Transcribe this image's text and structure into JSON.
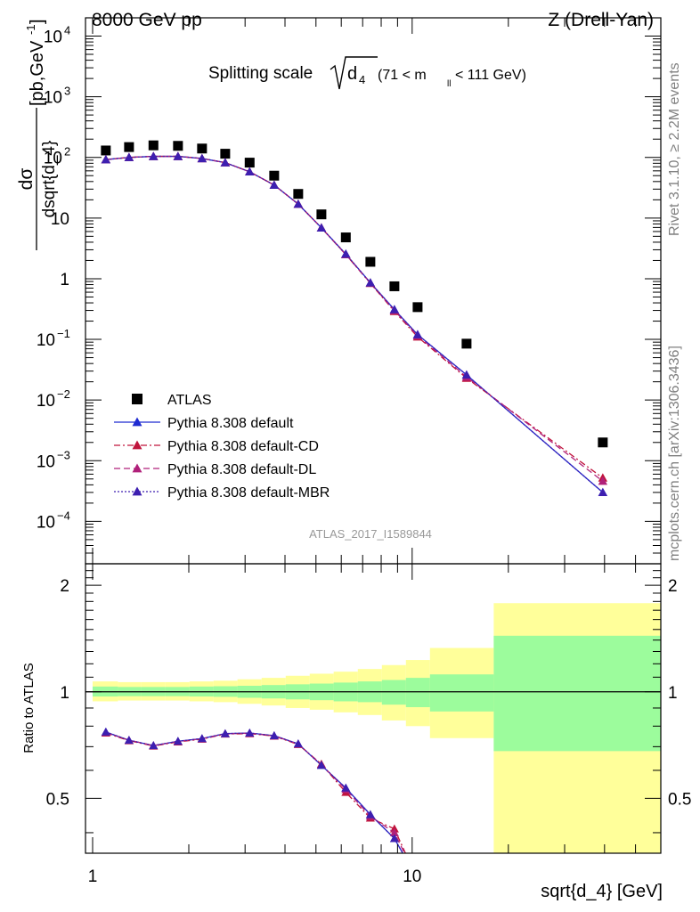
{
  "header": {
    "left": "8000 GeV pp",
    "right": "Z (Drell-Yan)"
  },
  "side": {
    "rivet": "Rivet 3.1.10, ≥ 2.2M events",
    "mcplots": "mcplots.cern.ch [arXiv:1306.3436]"
  },
  "chart_data": [
    {
      "type": "scatter",
      "panel": "main",
      "title": "Splitting scale √d₄ (71 < mₗₗ < 111 GeV)",
      "title_parts": {
        "main": "Splitting scale",
        "sym": "d",
        "sub": "4",
        "cut": "(71 < m",
        "cut_sub": "ll",
        "cut_end": " < 111 GeV)"
      },
      "ylabel_num": "dσ",
      "ylabel_den": "dsqrt{d_4}",
      "ylabel_units": "[pb,GeV",
      "ylabel_units_sup": "-1",
      "ylabel_units_end": "]",
      "yscale": "log",
      "ylim": [
        2e-05,
        20000
      ],
      "xscale": "log",
      "xlim": [
        0.95,
        60
      ],
      "watermark": "ATLAS_2017_I1589844",
      "y_ticks": [
        {
          "v": 0.0001,
          "m": "10",
          "e": "−4"
        },
        {
          "v": 0.001,
          "m": "10",
          "e": "−3"
        },
        {
          "v": 0.01,
          "m": "10",
          "e": "−2"
        },
        {
          "v": 0.1,
          "m": "10",
          "e": "−1"
        },
        {
          "v": 1,
          "m": "1",
          "e": ""
        },
        {
          "v": 10,
          "m": "10",
          "e": ""
        },
        {
          "v": 100,
          "m": "10",
          "e": "2"
        },
        {
          "v": 1000,
          "m": "10",
          "e": "3"
        },
        {
          "v": 10000,
          "m": "10",
          "e": "4"
        }
      ],
      "x": [
        1.1,
        1.3,
        1.55,
        1.85,
        2.2,
        2.6,
        3.1,
        3.7,
        4.4,
        5.2,
        6.2,
        7.4,
        8.8,
        10.4,
        14.8,
        39.5
      ],
      "legend_position": "lower-left",
      "series": [
        {
          "name": "ATLAS",
          "style": "data",
          "color": "#000000",
          "y": [
            130,
            148,
            158,
            155,
            140,
            115,
            82,
            50,
            25,
            11.5,
            4.8,
            1.9,
            0.75,
            0.34,
            0.085,
            0.002
          ]
        },
        {
          "name": "Pythia 8.308 default",
          "style": "solid",
          "color": "#1f2bd1",
          "y": [
            92,
            100,
            104,
            104,
            96,
            82,
            58,
            35,
            17,
            6.9,
            2.55,
            0.86,
            0.31,
            0.12,
            0.026,
            0.0003
          ]
        },
        {
          "name": "Pythia 8.308 default-CD",
          "style": "dashdot",
          "color": "#c0143c",
          "y": [
            92,
            100,
            104,
            104,
            96,
            82,
            58,
            35,
            17,
            6.9,
            2.5,
            0.84,
            0.29,
            0.11,
            0.023,
            0.00052
          ]
        },
        {
          "name": "Pythia 8.308 default-DL",
          "style": "dashed",
          "color": "#b0207a",
          "y": [
            92,
            100,
            104,
            104,
            96,
            82,
            58,
            35,
            17,
            6.9,
            2.5,
            0.85,
            0.3,
            0.115,
            0.024,
            0.00046
          ]
        },
        {
          "name": "Pythia 8.308 default-MBR",
          "style": "dotted",
          "color": "#3d1fb0",
          "y": [
            92,
            100,
            104,
            104,
            96,
            82,
            58,
            35,
            17,
            6.9,
            2.55,
            0.86,
            0.31,
            0.12,
            0.026,
            0.0003
          ]
        }
      ]
    },
    {
      "type": "line",
      "panel": "ratio",
      "ylabel": "Ratio to ATLAS",
      "xlabel": "sqrt{d_4} [GeV]",
      "ylim": [
        0.35,
        2.3
      ],
      "yscale": "log",
      "y_ticks": [
        0.5,
        1,
        2
      ],
      "y_tick_labels": [
        "0.5",
        "1",
        "2"
      ],
      "x_ticks": [
        1,
        10
      ],
      "x_tick_labels": [
        "1",
        "10"
      ],
      "reference_line": 1,
      "bin_edges": [
        1.0,
        1.2,
        1.42,
        1.69,
        2.01,
        2.39,
        2.84,
        3.38,
        4.02,
        4.78,
        5.68,
        6.76,
        8.04,
        9.56,
        11.37,
        18.0,
        60.0
      ],
      "band_total": [
        [
          0.94,
          1.07
        ],
        [
          0.945,
          1.065
        ],
        [
          0.945,
          1.065
        ],
        [
          0.945,
          1.065
        ],
        [
          0.94,
          1.07
        ],
        [
          0.935,
          1.075
        ],
        [
          0.925,
          1.085
        ],
        [
          0.915,
          1.095
        ],
        [
          0.9,
          1.11
        ],
        [
          0.89,
          1.125
        ],
        [
          0.875,
          1.14
        ],
        [
          0.86,
          1.16
        ],
        [
          0.83,
          1.19
        ],
        [
          0.8,
          1.23
        ],
        [
          0.74,
          1.33
        ],
        [
          0.35,
          1.78
        ]
      ],
      "band_stat": [
        [
          0.97,
          1.035
        ],
        [
          0.972,
          1.032
        ],
        [
          0.972,
          1.032
        ],
        [
          0.972,
          1.032
        ],
        [
          0.97,
          1.035
        ],
        [
          0.968,
          1.037
        ],
        [
          0.962,
          1.04
        ],
        [
          0.958,
          1.045
        ],
        [
          0.952,
          1.05
        ],
        [
          0.947,
          1.055
        ],
        [
          0.94,
          1.062
        ],
        [
          0.935,
          1.07
        ],
        [
          0.92,
          1.08
        ],
        [
          0.905,
          1.095
        ],
        [
          0.88,
          1.12
        ],
        [
          0.68,
          1.44
        ]
      ],
      "band_colors": {
        "total": "#ffff9a",
        "stat": "#9cfc9c"
      },
      "series": [
        {
          "name": "Pythia 8.308 default",
          "color": "#1f2bd1",
          "y": [
            0.77,
            0.73,
            0.705,
            0.725,
            0.738,
            0.762,
            0.765,
            0.752,
            0.713,
            0.62,
            0.535,
            0.45,
            0.385
          ]
        },
        {
          "name": "Pythia 8.308 default-CD",
          "color": "#c0143c",
          "y": [
            0.765,
            0.728,
            0.703,
            0.722,
            0.735,
            0.76,
            0.762,
            0.75,
            0.71,
            0.625,
            0.52,
            0.44,
            0.41
          ]
        },
        {
          "name": "Pythia 8.308 default-DL",
          "color": "#b0207a",
          "y": [
            0.768,
            0.73,
            0.705,
            0.724,
            0.737,
            0.761,
            0.764,
            0.751,
            0.712,
            0.622,
            0.53,
            0.445,
            0.4
          ]
        },
        {
          "name": "Pythia 8.308 default-MBR",
          "color": "#3d1fb0",
          "y": [
            0.77,
            0.73,
            0.705,
            0.725,
            0.738,
            0.762,
            0.765,
            0.752,
            0.713,
            0.62,
            0.535,
            0.45,
            0.385
          ]
        }
      ]
    }
  ]
}
